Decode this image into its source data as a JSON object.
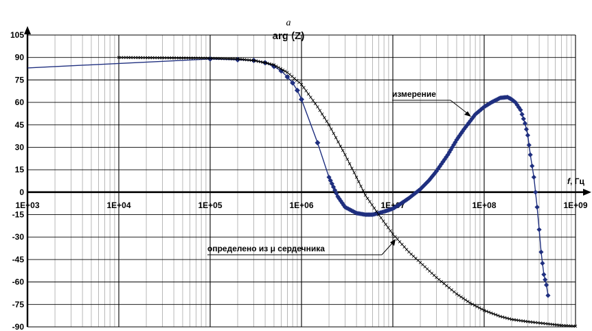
{
  "figure_label": "a",
  "chart_data": {
    "type": "line",
    "title": "arg (Z)",
    "xlabel": "f, Гц",
    "xlabel_parts": {
      "var": "f",
      "unit": ", Гц"
    },
    "ylabel": "",
    "x_scale": "log",
    "xlim": [
      1000,
      1000000000
    ],
    "ylim": [
      -90,
      105
    ],
    "x_ticks": [
      1000,
      10000,
      100000,
      1000000,
      10000000,
      100000000,
      1000000000
    ],
    "x_tick_labels": [
      "1E+03",
      "1E+04",
      "1E+05",
      "1E+06",
      "1E+07",
      "1E+08",
      "1E+09"
    ],
    "y_ticks": [
      -90,
      -75,
      -60,
      -45,
      -30,
      -15,
      0,
      15,
      30,
      45,
      60,
      75,
      90,
      105
    ],
    "y_tick_labels": [
      "-90",
      "-75",
      "-60",
      "-45",
      "-30",
      "-15",
      "0",
      "15",
      "30",
      "45",
      "60",
      "75",
      "90",
      "105"
    ],
    "grid": true,
    "legend": "none",
    "annotations": [
      {
        "text": "измерение",
        "series": "measured"
      },
      {
        "text": "определено из μ сердечника",
        "series": "core"
      }
    ],
    "series": [
      {
        "id": "measured",
        "color": "#1f2f7f",
        "marker": "diamond",
        "x": [
          1000,
          100000,
          200000,
          300000,
          400000,
          500000,
          600000,
          700000,
          800000,
          900000,
          1000000,
          1500000,
          2000000,
          2500000,
          3000000,
          4000000,
          5000000,
          6000000,
          7000000,
          8000000,
          10000000,
          12000000,
          15000000,
          20000000,
          25000000,
          30000000,
          40000000,
          50000000,
          60000000,
          80000000,
          100000000,
          120000000,
          150000000,
          180000000,
          200000000,
          220000000,
          250000000,
          280000000,
          300000000,
          320000000,
          350000000,
          380000000,
          400000000,
          420000000,
          450000000,
          480000000,
          500000000
        ],
        "y": [
          83,
          89,
          88.5,
          88,
          86.5,
          84,
          81,
          77,
          73,
          68,
          62,
          33,
          10,
          -3,
          -10,
          -14,
          -15,
          -15,
          -14,
          -13,
          -11,
          -8,
          -4,
          2,
          8,
          14,
          25,
          35,
          42,
          52,
          57,
          60,
          63,
          63.5,
          62,
          60,
          55,
          46,
          38,
          25,
          10,
          -10,
          -25,
          -40,
          -55,
          -62,
          -69
        ]
      },
      {
        "id": "core",
        "color": "#000000",
        "marker": "cross",
        "x": [
          10000,
          100000,
          200000,
          300000,
          400000,
          500000,
          700000,
          1000000,
          1500000,
          2000000,
          3000000,
          4000000,
          5000000,
          7000000,
          10000000,
          15000000,
          20000000,
          30000000,
          50000000,
          70000000,
          100000000,
          150000000,
          200000000,
          300000000,
          500000000,
          700000000,
          1000000000
        ],
        "y": [
          90,
          89.5,
          89,
          88,
          86.5,
          85,
          80,
          72,
          57,
          45,
          25,
          10,
          -2,
          -15,
          -28,
          -40,
          -47,
          -57,
          -68,
          -74,
          -79,
          -83,
          -85,
          -86.5,
          -88,
          -89,
          -89.5
        ]
      }
    ]
  }
}
